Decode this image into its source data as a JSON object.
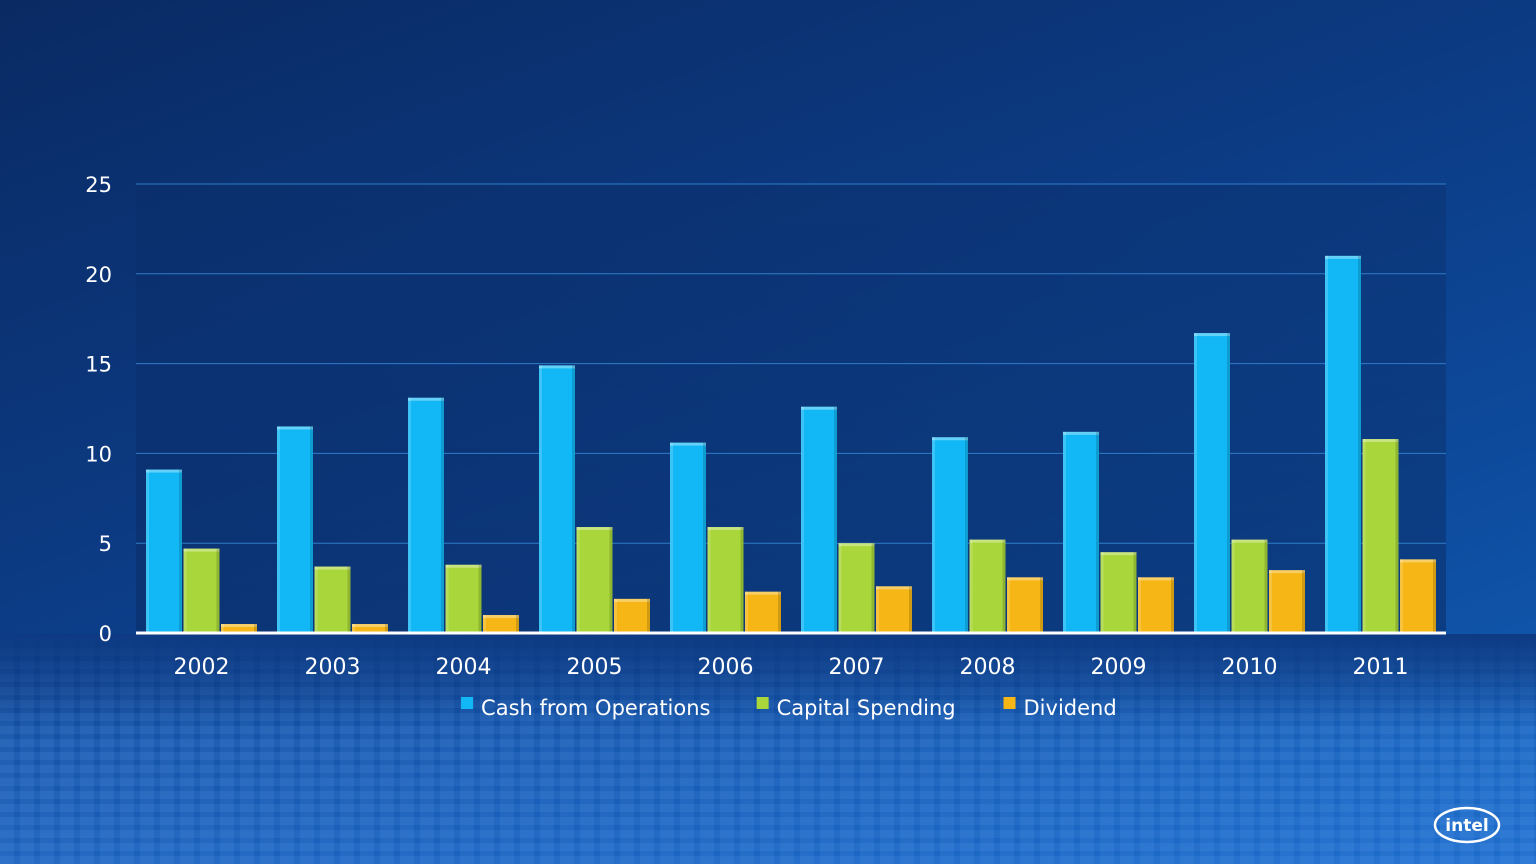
{
  "logo": {
    "text": "intel",
    "icon": "intel-logo"
  },
  "colors": {
    "cash": "#12b8f5",
    "capital": "#a9d63a",
    "dividend": "#f5b616",
    "grid": "#2f7cc8",
    "axis": "#ffffff"
  },
  "chart_data": {
    "type": "bar",
    "title": "",
    "xlabel": "",
    "ylabel": "",
    "ylim": [
      0,
      25
    ],
    "yticks": [
      0,
      5,
      10,
      15,
      20,
      25
    ],
    "grid": true,
    "legend_position": "bottom",
    "categories": [
      "2002",
      "2003",
      "2004",
      "2005",
      "2006",
      "2007",
      "2008",
      "2009",
      "2010",
      "2011"
    ],
    "series": [
      {
        "name": "Cash from Operations",
        "color": "#12b8f5",
        "values": [
          9.1,
          11.5,
          13.1,
          14.9,
          10.6,
          12.6,
          10.9,
          11.2,
          16.7,
          21.0
        ]
      },
      {
        "name": "Capital Spending",
        "color": "#a9d63a",
        "values": [
          4.7,
          3.7,
          3.8,
          5.9,
          5.9,
          5.0,
          5.2,
          4.5,
          5.2,
          10.8
        ]
      },
      {
        "name": "Dividend",
        "color": "#f5b616",
        "values": [
          0.5,
          0.5,
          1.0,
          1.9,
          2.3,
          2.6,
          3.1,
          3.1,
          3.5,
          4.1
        ]
      }
    ]
  }
}
